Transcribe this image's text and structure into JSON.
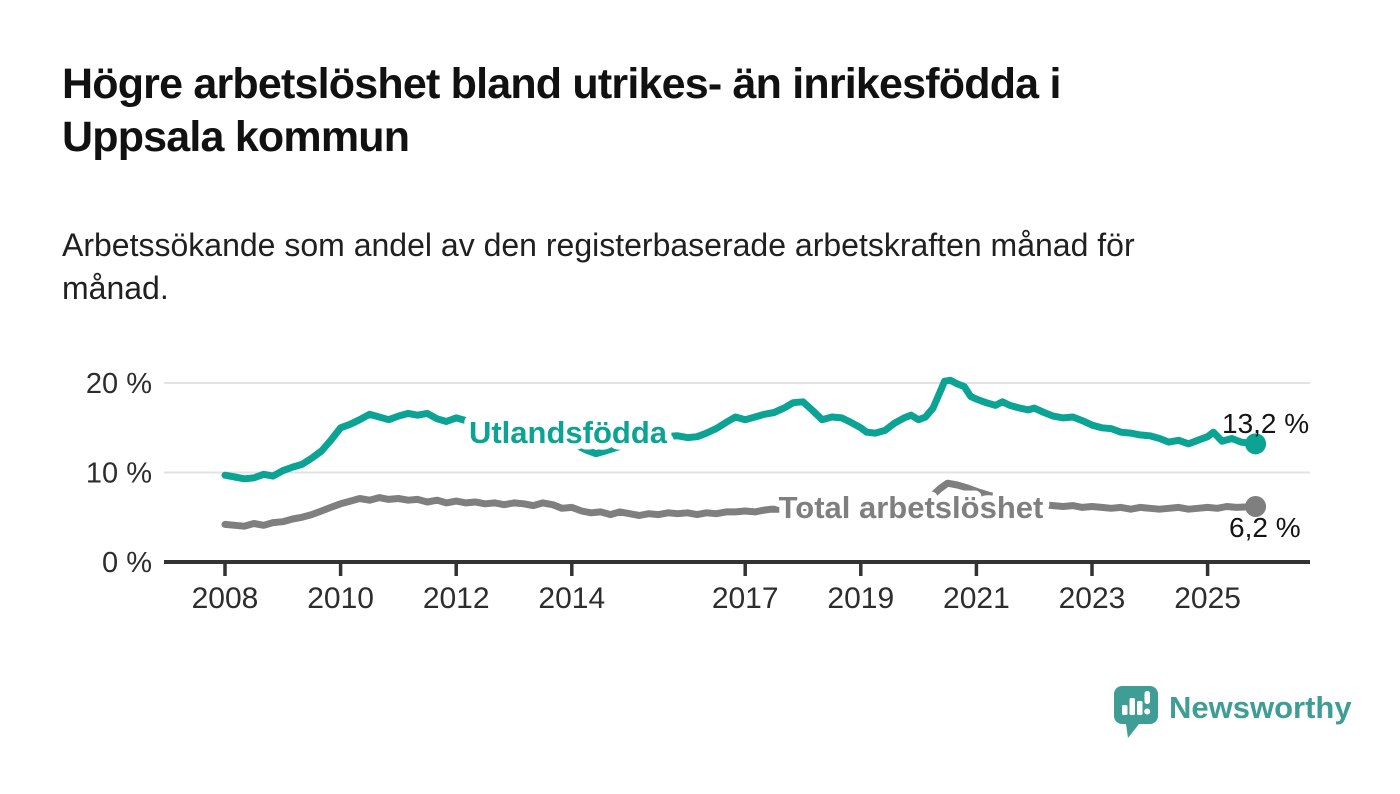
{
  "header": {
    "title_line1": "Högre arbetslöshet bland utrikes- än inrikesfödda i",
    "title_line2": "Uppsala kommun",
    "subtitle_line1": "Arbetssökande som andel av den registerbaserade arbetskraften månad för",
    "subtitle_line2": "månad."
  },
  "chart_data": {
    "type": "line",
    "title": "Högre arbetslöshet bland utrikes- än inrikesfödda i Uppsala kommun",
    "subtitle": "Arbetssökande som andel av den registerbaserade arbetskraften månad för månad.",
    "unit": "%",
    "xlim": [
      2007.4,
      2026.6
    ],
    "ylim": [
      0,
      22
    ],
    "grid": "horizontal",
    "legend": "inline-labels",
    "x_ticks": [
      2008,
      2010,
      2012,
      2014,
      2017,
      2019,
      2021,
      2023,
      2025
    ],
    "y_ticks": [
      0,
      10,
      20
    ],
    "y_tick_labels": [
      "0 %",
      "10 %",
      "20 %"
    ],
    "axis_color": "#333333",
    "grid_color": "#e2e2e2",
    "series": [
      {
        "name": "Utlandsfödda",
        "color": "#0ba394",
        "end_label": "13,2 %",
        "end_value": 13.2,
        "points": [
          [
            2008,
            9.7
          ],
          [
            2008.17,
            9.5
          ],
          [
            2008.33,
            9.3
          ],
          [
            2008.5,
            9.4
          ],
          [
            2008.67,
            9.8
          ],
          [
            2008.83,
            9.6
          ],
          [
            2009,
            10.2
          ],
          [
            2009.17,
            10.6
          ],
          [
            2009.33,
            10.9
          ],
          [
            2009.5,
            11.6
          ],
          [
            2009.67,
            12.4
          ],
          [
            2009.83,
            13.6
          ],
          [
            2010,
            15
          ],
          [
            2010.17,
            15.4
          ],
          [
            2010.33,
            15.9
          ],
          [
            2010.5,
            16.5
          ],
          [
            2010.67,
            16.2
          ],
          [
            2010.83,
            15.9
          ],
          [
            2011,
            16.3
          ],
          [
            2011.17,
            16.6
          ],
          [
            2011.33,
            16.4
          ],
          [
            2011.5,
            16.6
          ],
          [
            2011.67,
            16
          ],
          [
            2011.83,
            15.7
          ],
          [
            2012,
            16.1
          ],
          [
            2012.17,
            15.8
          ],
          [
            2012.33,
            15.5
          ],
          [
            2012.67,
            15.2
          ],
          [
            2013,
            14.9
          ],
          [
            2013.33,
            14.4
          ],
          [
            2013.67,
            13.9
          ],
          [
            2014,
            13.3
          ],
          [
            2014.25,
            12.5
          ],
          [
            2014.42,
            12.1
          ],
          [
            2014.58,
            12.4
          ],
          [
            2014.83,
            12.9
          ],
          [
            2015.08,
            13.5
          ],
          [
            2015.33,
            13.8
          ],
          [
            2015.58,
            14
          ],
          [
            2015.83,
            14.1
          ],
          [
            2016,
            13.9
          ],
          [
            2016.17,
            14
          ],
          [
            2016.33,
            14.4
          ],
          [
            2016.5,
            14.9
          ],
          [
            2016.67,
            15.6
          ],
          [
            2016.83,
            16.2
          ],
          [
            2017,
            15.9
          ],
          [
            2017.17,
            16.2
          ],
          [
            2017.33,
            16.5
          ],
          [
            2017.5,
            16.7
          ],
          [
            2017.67,
            17.2
          ],
          [
            2017.83,
            17.8
          ],
          [
            2018,
            17.9
          ],
          [
            2018.17,
            16.9
          ],
          [
            2018.33,
            15.9
          ],
          [
            2018.5,
            16.2
          ],
          [
            2018.67,
            16.1
          ],
          [
            2018.83,
            15.6
          ],
          [
            2019,
            15
          ],
          [
            2019.1,
            14.5
          ],
          [
            2019.25,
            14.4
          ],
          [
            2019.42,
            14.7
          ],
          [
            2019.58,
            15.5
          ],
          [
            2019.75,
            16.1
          ],
          [
            2019.87,
            16.4
          ],
          [
            2020,
            15.9
          ],
          [
            2020.12,
            16.2
          ],
          [
            2020.25,
            17.2
          ],
          [
            2020.37,
            19
          ],
          [
            2020.45,
            20.2
          ],
          [
            2020.55,
            20.3
          ],
          [
            2020.67,
            19.9
          ],
          [
            2020.79,
            19.6
          ],
          [
            2020.9,
            18.5
          ],
          [
            2021,
            18.2
          ],
          [
            2021.17,
            17.8
          ],
          [
            2021.33,
            17.5
          ],
          [
            2021.45,
            17.9
          ],
          [
            2021.58,
            17.5
          ],
          [
            2021.75,
            17.2
          ],
          [
            2021.9,
            17
          ],
          [
            2022,
            17.2
          ],
          [
            2022.17,
            16.7
          ],
          [
            2022.33,
            16.3
          ],
          [
            2022.5,
            16.1
          ],
          [
            2022.67,
            16.2
          ],
          [
            2022.83,
            15.8
          ],
          [
            2023,
            15.3
          ],
          [
            2023.17,
            15
          ],
          [
            2023.33,
            14.9
          ],
          [
            2023.5,
            14.5
          ],
          [
            2023.67,
            14.4
          ],
          [
            2023.83,
            14.2
          ],
          [
            2024,
            14.1
          ],
          [
            2024.17,
            13.8
          ],
          [
            2024.33,
            13.4
          ],
          [
            2024.5,
            13.6
          ],
          [
            2024.67,
            13.2
          ],
          [
            2024.83,
            13.6
          ],
          [
            2025,
            14
          ],
          [
            2025.1,
            14.5
          ],
          [
            2025.25,
            13.5
          ],
          [
            2025.42,
            13.8
          ],
          [
            2025.58,
            13.4
          ],
          [
            2025.83,
            13.2
          ]
        ]
      },
      {
        "name": "Total arbetslöshet",
        "color": "#7f7f7f",
        "end_label": "6,2 %",
        "end_value": 6.2,
        "points": [
          [
            2008,
            4.2
          ],
          [
            2008.17,
            4.1
          ],
          [
            2008.33,
            4
          ],
          [
            2008.5,
            4.3
          ],
          [
            2008.67,
            4.1
          ],
          [
            2008.83,
            4.4
          ],
          [
            2009,
            4.5
          ],
          [
            2009.17,
            4.8
          ],
          [
            2009.33,
            5
          ],
          [
            2009.5,
            5.3
          ],
          [
            2009.67,
            5.7
          ],
          [
            2009.83,
            6.1
          ],
          [
            2010,
            6.5
          ],
          [
            2010.17,
            6.8
          ],
          [
            2010.33,
            7.1
          ],
          [
            2010.5,
            6.9
          ],
          [
            2010.67,
            7.2
          ],
          [
            2010.83,
            7
          ],
          [
            2011,
            7.1
          ],
          [
            2011.17,
            6.9
          ],
          [
            2011.33,
            7
          ],
          [
            2011.5,
            6.7
          ],
          [
            2011.67,
            6.9
          ],
          [
            2011.83,
            6.6
          ],
          [
            2012,
            6.8
          ],
          [
            2012.17,
            6.6
          ],
          [
            2012.33,
            6.7
          ],
          [
            2012.5,
            6.5
          ],
          [
            2012.67,
            6.6
          ],
          [
            2012.83,
            6.4
          ],
          [
            2013,
            6.6
          ],
          [
            2013.17,
            6.5
          ],
          [
            2013.33,
            6.3
          ],
          [
            2013.5,
            6.6
          ],
          [
            2013.67,
            6.4
          ],
          [
            2013.83,
            6
          ],
          [
            2014,
            6.1
          ],
          [
            2014.17,
            5.7
          ],
          [
            2014.33,
            5.5
          ],
          [
            2014.5,
            5.6
          ],
          [
            2014.67,
            5.3
          ],
          [
            2014.83,
            5.6
          ],
          [
            2015,
            5.4
          ],
          [
            2015.17,
            5.2
          ],
          [
            2015.33,
            5.4
          ],
          [
            2015.5,
            5.3
          ],
          [
            2015.67,
            5.5
          ],
          [
            2015.83,
            5.4
          ],
          [
            2016,
            5.5
          ],
          [
            2016.17,
            5.3
          ],
          [
            2016.33,
            5.5
          ],
          [
            2016.5,
            5.4
          ],
          [
            2016.67,
            5.6
          ],
          [
            2016.83,
            5.6
          ],
          [
            2017,
            5.7
          ],
          [
            2017.17,
            5.6
          ],
          [
            2017.33,
            5.8
          ],
          [
            2017.45,
            5.9
          ],
          [
            2017.67,
            5.9
          ],
          [
            2018,
            5.8
          ],
          [
            2018.33,
            5.9
          ],
          [
            2018.67,
            5.8
          ],
          [
            2019,
            5.9
          ],
          [
            2019.33,
            6
          ],
          [
            2019.67,
            6.1
          ],
          [
            2019.87,
            6.2
          ],
          [
            2020,
            6.4
          ],
          [
            2020.2,
            7.2
          ],
          [
            2020.37,
            8.2
          ],
          [
            2020.5,
            8.8
          ],
          [
            2020.67,
            8.6
          ],
          [
            2020.83,
            8.3
          ],
          [
            2021,
            7.9
          ],
          [
            2021.25,
            7.4
          ],
          [
            2021.5,
            7
          ],
          [
            2021.75,
            6.7
          ],
          [
            2022,
            6.5
          ],
          [
            2022.17,
            6.4
          ],
          [
            2022.33,
            6.3
          ],
          [
            2022.5,
            6.2
          ],
          [
            2022.67,
            6.3
          ],
          [
            2022.83,
            6.1
          ],
          [
            2023,
            6.2
          ],
          [
            2023.17,
            6.1
          ],
          [
            2023.33,
            6
          ],
          [
            2023.5,
            6.1
          ],
          [
            2023.67,
            5.9
          ],
          [
            2023.83,
            6.1
          ],
          [
            2024,
            6
          ],
          [
            2024.17,
            5.9
          ],
          [
            2024.33,
            6
          ],
          [
            2024.5,
            6.1
          ],
          [
            2024.67,
            5.9
          ],
          [
            2024.83,
            6
          ],
          [
            2025,
            6.1
          ],
          [
            2025.17,
            6
          ],
          [
            2025.33,
            6.2
          ],
          [
            2025.5,
            6.1
          ],
          [
            2025.83,
            6.2
          ]
        ]
      }
    ]
  },
  "footer": {
    "brand": "Newsworthy",
    "brand_color": "#3e9e96"
  }
}
